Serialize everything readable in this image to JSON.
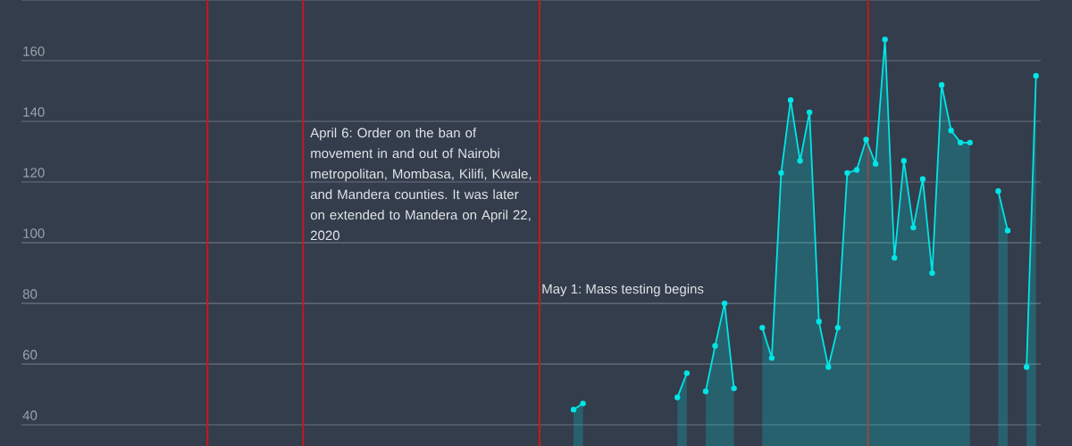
{
  "chart_data": {
    "type": "area",
    "categories": [
      null,
      null,
      null,
      null,
      null,
      null,
      null,
      null,
      null,
      null,
      null,
      null,
      null,
      null,
      null,
      null,
      null,
      null,
      null,
      null,
      null,
      null,
      null,
      null,
      null,
      null,
      null,
      null,
      null,
      null,
      null,
      null,
      null,
      null,
      null,
      null,
      null,
      null,
      null,
      null,
      null,
      null,
      null,
      null,
      null,
      null,
      null,
      null,
      null,
      null,
      null,
      null,
      null,
      null,
      null,
      null,
      null,
      null,
      null,
      null,
      null,
      null,
      null,
      null,
      null,
      null,
      null,
      null,
      null,
      null,
      null,
      null,
      null,
      null,
      null,
      null,
      null,
      null,
      null,
      null,
      null,
      null,
      null,
      null,
      null,
      null,
      null,
      null,
      null,
      null,
      null,
      null,
      null,
      null,
      null,
      null,
      null,
      null,
      null,
      null,
      null,
      null,
      null,
      null,
      null,
      null,
      null,
      null
    ],
    "series": [
      {
        "color": "#00e5e5",
        "values": [
          null,
          null,
          null,
          null,
          null,
          null,
          null,
          null,
          null,
          null,
          null,
          null,
          null,
          null,
          null,
          null,
          null,
          null,
          null,
          null,
          null,
          null,
          null,
          null,
          null,
          null,
          null,
          null,
          null,
          null,
          null,
          null,
          null,
          null,
          null,
          null,
          null,
          null,
          null,
          null,
          null,
          null,
          null,
          null,
          null,
          null,
          null,
          null,
          null,
          null,
          null,
          null,
          null,
          null,
          null,
          null,
          null,
          null,
          45,
          47,
          null,
          null,
          null,
          null,
          null,
          null,
          null,
          null,
          null,
          49,
          57,
          null,
          51,
          66,
          80,
          52,
          null,
          null,
          72,
          62,
          123,
          147,
          127,
          143,
          74,
          59,
          72,
          123,
          124,
          134,
          126,
          167,
          95,
          127,
          105,
          121,
          90,
          152,
          137,
          133,
          133,
          null,
          null,
          117,
          104,
          null,
          59,
          155
        ]
      }
    ],
    "ylim": [
      33,
      180
    ],
    "yticks": [
      40,
      60,
      80,
      100,
      120,
      140,
      160,
      {
        "value": 180,
        "label": null
      }
    ],
    "grid": "y",
    "marker": "circle",
    "tick_labels": "y",
    "annotations": [
      "April 6: Order on the ban of movement in and out of Nairobi metropolitan, Mombasa, Kilifi, Kwale, and Mandera counties. It was later on extended to Mandera on April 22, 2020",
      "May 1: Mass testing begins"
    ]
  }
}
